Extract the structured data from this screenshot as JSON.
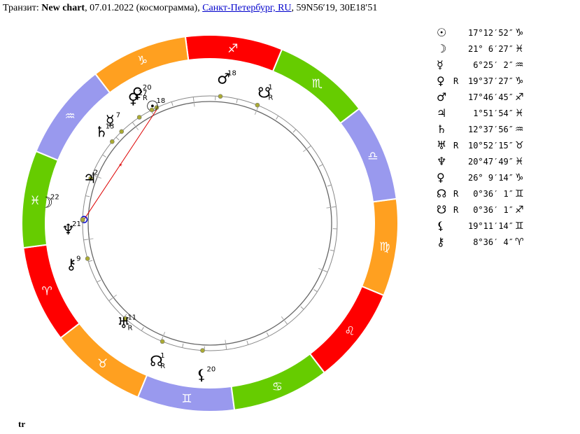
{
  "header": {
    "prefix": "Транзит: ",
    "chart_name": "New chart",
    "date_text": ", 07.01.2022 (космограмма), ",
    "location_link": "Санкт-Петербург, RU",
    "coords": ", 59N56′19, 30E18′51"
  },
  "footer": {
    "label": "tr"
  },
  "colors": {
    "fire": "#ff0000",
    "earth": "#ffa020",
    "air": "#9999ee",
    "water": "#66cc00",
    "dot": "#aaaa33",
    "aspect_line": "#dd0000",
    "link": "#0000cc"
  },
  "zodiac": [
    {
      "name": "aries",
      "glyph": "♈︎",
      "color": "#ff0000"
    },
    {
      "name": "taurus",
      "glyph": "♉︎",
      "color": "#ffa020"
    },
    {
      "name": "gemini",
      "glyph": "♊︎",
      "color": "#9999ee"
    },
    {
      "name": "cancer",
      "glyph": "♋︎",
      "color": "#66cc00"
    },
    {
      "name": "leo",
      "glyph": "♌︎",
      "color": "#ff0000"
    },
    {
      "name": "virgo",
      "glyph": "♍︎",
      "color": "#ffa020"
    },
    {
      "name": "libra",
      "glyph": "♎︎",
      "color": "#9999ee"
    },
    {
      "name": "scorpio",
      "glyph": "♏︎",
      "color": "#66cc00"
    },
    {
      "name": "sagittarius",
      "glyph": "♐︎",
      "color": "#ff0000"
    },
    {
      "name": "capricorn",
      "glyph": "♑︎",
      "color": "#ffa020"
    },
    {
      "name": "aquarius",
      "glyph": "♒︎",
      "color": "#9999ee"
    },
    {
      "name": "pisces",
      "glyph": "♓︎",
      "color": "#66cc00"
    }
  ],
  "planets": [
    {
      "key": "sun",
      "glyph": "☉︎",
      "retro": "",
      "deg": "17°12′52″",
      "sign": "♑︎",
      "lon": 287.21,
      "label": "18"
    },
    {
      "key": "moon",
      "glyph": "☽︎",
      "retro": "",
      "deg": "21° 6′27″",
      "sign": "♓︎",
      "lon": 351.11,
      "label": "22"
    },
    {
      "key": "mercury",
      "glyph": "☿︎",
      "retro": "",
      "deg": "6°25′ 2″",
      "sign": "♒︎",
      "lon": 306.42,
      "label": "7"
    },
    {
      "key": "venus",
      "glyph": "♀︎",
      "retro": "R",
      "deg": "19°37′27″",
      "sign": "♑︎",
      "lon": 289.62,
      "label": "20"
    },
    {
      "key": "mars",
      "glyph": "♂︎",
      "retro": "",
      "deg": "17°46′45″",
      "sign": "♐︎",
      "lon": 257.78,
      "label": "18"
    },
    {
      "key": "jupiter",
      "glyph": "♃︎",
      "retro": "",
      "deg": "1°51′54″",
      "sign": "♓︎",
      "lon": 331.87,
      "label": "2"
    },
    {
      "key": "saturn",
      "glyph": "♄︎",
      "retro": "",
      "deg": "12°37′56″",
      "sign": "♒︎",
      "lon": 312.63,
      "label": "13"
    },
    {
      "key": "uranus",
      "glyph": "♅︎",
      "retro": "R",
      "deg": "10°52′15″",
      "sign": "♉︎",
      "lon": 40.87,
      "label": "11"
    },
    {
      "key": "neptune",
      "glyph": "♆︎",
      "retro": "",
      "deg": "20°47′49″",
      "sign": "♓︎",
      "lon": 350.8,
      "label": "21"
    },
    {
      "key": "pluto",
      "glyph": "♀︎",
      "retro": "",
      "deg": "26° 9′14″",
      "sign": "♑︎",
      "lon": 296.15,
      "label": "27"
    },
    {
      "key": "north-node",
      "glyph": "☊︎",
      "retro": "R",
      "deg": "0°36′ 1″",
      "sign": "♊︎",
      "lon": 60.6,
      "label": "1"
    },
    {
      "key": "south-node",
      "glyph": "☋︎",
      "retro": "R",
      "deg": "0°36′ 1″",
      "sign": "♐︎",
      "lon": 240.6,
      "label": "1"
    },
    {
      "key": "lilith",
      "glyph": "⚸︎",
      "retro": "",
      "deg": "19°11′14″",
      "sign": "♊︎",
      "lon": 79.19,
      "label": "20"
    },
    {
      "key": "chiron",
      "glyph": "⚷︎",
      "retro": "",
      "deg": "8°36′ 4″",
      "sign": "♈︎",
      "lon": 8.6,
      "label": "9"
    }
  ]
}
